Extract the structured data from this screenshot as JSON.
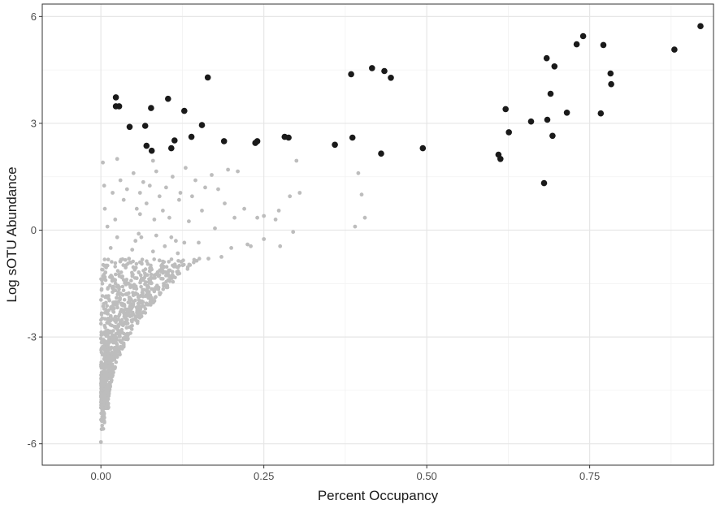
{
  "chart_data": {
    "type": "scatter",
    "title": "",
    "xlabel": "Percent Occupancy",
    "ylabel": "Log sOTU Abundance",
    "xlim": [
      -0.09,
      0.94
    ],
    "ylim": [
      -6.6,
      6.35
    ],
    "x_ticks": [
      0.0,
      0.25,
      0.5,
      0.75
    ],
    "x_tick_labels": [
      "0.00",
      "0.25",
      "0.50",
      "0.75"
    ],
    "y_ticks": [
      -6,
      -3,
      0,
      3,
      6
    ],
    "y_tick_labels": [
      "-6",
      "-3",
      "0",
      "3",
      "6"
    ],
    "grid": true,
    "legend": "none",
    "colors": {
      "core": "#1a1a1a",
      "other": "#bdbdbd",
      "panel_border": "#333333",
      "grid_major": "#e6e6e6",
      "grid_minor": "#f2f2f2"
    },
    "series": [
      {
        "key": "core",
        "points": [
          [
            0.023,
            3.73
          ],
          [
            0.023,
            3.48
          ],
          [
            0.028,
            3.48
          ],
          [
            0.044,
            2.9
          ],
          [
            0.068,
            2.93
          ],
          [
            0.07,
            2.37
          ],
          [
            0.077,
            3.43
          ],
          [
            0.078,
            2.23
          ],
          [
            0.103,
            3.69
          ],
          [
            0.108,
            2.3
          ],
          [
            0.113,
            2.52
          ],
          [
            0.128,
            3.35
          ],
          [
            0.139,
            2.62
          ],
          [
            0.155,
            2.95
          ],
          [
            0.164,
            4.29
          ],
          [
            0.189,
            2.5
          ],
          [
            0.237,
            2.45
          ],
          [
            0.24,
            2.5
          ],
          [
            0.282,
            2.62
          ],
          [
            0.288,
            2.6
          ],
          [
            0.359,
            2.4
          ],
          [
            0.384,
            4.38
          ],
          [
            0.386,
            2.6
          ],
          [
            0.416,
            4.55
          ],
          [
            0.43,
            2.15
          ],
          [
            0.435,
            4.47
          ],
          [
            0.445,
            4.28
          ],
          [
            0.494,
            2.3
          ],
          [
            0.61,
            2.12
          ],
          [
            0.613,
            2.0
          ],
          [
            0.621,
            3.4
          ],
          [
            0.626,
            2.75
          ],
          [
            0.66,
            3.05
          ],
          [
            0.68,
            1.32
          ],
          [
            0.684,
            4.83
          ],
          [
            0.685,
            3.1
          ],
          [
            0.69,
            3.83
          ],
          [
            0.693,
            2.65
          ],
          [
            0.696,
            4.6
          ],
          [
            0.715,
            3.3
          ],
          [
            0.73,
            5.22
          ],
          [
            0.74,
            5.45
          ],
          [
            0.767,
            3.28
          ],
          [
            0.771,
            5.2
          ],
          [
            0.782,
            4.4
          ],
          [
            0.783,
            4.1
          ],
          [
            0.88,
            5.07
          ],
          [
            0.92,
            5.73
          ]
        ]
      },
      {
        "key": "other",
        "points": [
          [
            0.003,
            1.9
          ],
          [
            0.005,
            1.25
          ],
          [
            0.006,
            0.6
          ],
          [
            0.018,
            1.05
          ],
          [
            0.022,
            0.3
          ],
          [
            0.025,
            2.0
          ],
          [
            0.03,
            1.4
          ],
          [
            0.035,
            0.85
          ],
          [
            0.04,
            1.15
          ],
          [
            0.05,
            1.6
          ],
          [
            0.055,
            0.6
          ],
          [
            0.06,
            1.05
          ],
          [
            0.065,
            1.35
          ],
          [
            0.07,
            0.75
          ],
          [
            0.075,
            1.25
          ],
          [
            0.08,
            1.95
          ],
          [
            0.082,
            0.3
          ],
          [
            0.085,
            1.65
          ],
          [
            0.09,
            0.95
          ],
          [
            0.095,
            0.55
          ],
          [
            0.1,
            1.2
          ],
          [
            0.105,
            0.35
          ],
          [
            0.11,
            1.5
          ],
          [
            0.115,
            -0.3
          ],
          [
            0.12,
            0.85
          ],
          [
            0.122,
            1.05
          ],
          [
            0.13,
            1.75
          ],
          [
            0.135,
            0.25
          ],
          [
            0.14,
            0.95
          ],
          [
            0.145,
            1.4
          ],
          [
            0.15,
            -0.35
          ],
          [
            0.155,
            0.55
          ],
          [
            0.16,
            1.2
          ],
          [
            0.165,
            -0.8
          ],
          [
            0.17,
            1.55
          ],
          [
            0.175,
            0.05
          ],
          [
            0.18,
            1.15
          ],
          [
            0.185,
            -0.75
          ],
          [
            0.19,
            0.75
          ],
          [
            0.195,
            1.7
          ],
          [
            0.2,
            -0.5
          ],
          [
            0.205,
            0.35
          ],
          [
            0.21,
            1.65
          ],
          [
            0.22,
            0.6
          ],
          [
            0.225,
            -0.4
          ],
          [
            0.23,
            -0.45
          ],
          [
            0.24,
            0.35
          ],
          [
            0.25,
            0.4
          ],
          [
            0.25,
            -0.25
          ],
          [
            0.268,
            0.3
          ],
          [
            0.273,
            0.55
          ],
          [
            0.275,
            -0.45
          ],
          [
            0.29,
            0.95
          ],
          [
            0.295,
            -0.05
          ],
          [
            0.3,
            1.95
          ],
          [
            0.305,
            1.05
          ],
          [
            0.39,
            0.1
          ],
          [
            0.395,
            1.6
          ],
          [
            0.4,
            1.0
          ],
          [
            0.405,
            0.35
          ],
          [
            0.0,
            -5.95
          ],
          [
            0.002,
            -5.25
          ],
          [
            0.003,
            -4.85
          ],
          [
            0.004,
            -4.5
          ],
          [
            0.006,
            -4.1
          ],
          [
            0.008,
            -3.75
          ],
          [
            0.01,
            -3.45
          ],
          [
            0.013,
            -3.15
          ],
          [
            0.016,
            -2.85
          ],
          [
            0.018,
            -2.5
          ],
          [
            0.02,
            -2.2
          ],
          [
            0.024,
            -1.9
          ],
          [
            0.028,
            -1.6
          ],
          [
            0.033,
            -1.3
          ],
          [
            0.038,
            -1.05
          ],
          [
            0.043,
            -0.8
          ],
          [
            0.048,
            -0.55
          ],
          [
            0.053,
            -0.3
          ],
          [
            0.058,
            -0.1
          ],
          [
            0.065,
            -1.4
          ],
          [
            0.072,
            -0.95
          ],
          [
            0.08,
            -0.6
          ],
          [
            0.09,
            -0.85
          ],
          [
            0.098,
            -0.45
          ],
          [
            0.108,
            -0.2
          ],
          [
            0.118,
            -0.65
          ],
          [
            0.128,
            -0.35
          ],
          [
            0.025,
            -0.2
          ],
          [
            0.015,
            -0.5
          ],
          [
            0.04,
            -1.8
          ],
          [
            0.055,
            -1.35
          ],
          [
            0.062,
            -0.2
          ],
          [
            0.075,
            -1.15
          ],
          [
            0.085,
            -0.15
          ],
          [
            0.095,
            -1.05
          ],
          [
            0.032,
            -2.25
          ],
          [
            0.045,
            -1.95
          ],
          [
            0.07,
            -1.7
          ],
          [
            0.01,
            0.1
          ],
          [
            0.06,
            0.45
          ]
        ],
        "dense_region": "bulk of low-occupancy sOTUs forming a wedge from about (0.0, -6) to (0.15, -1), tapering toward x = 0"
      }
    ]
  }
}
